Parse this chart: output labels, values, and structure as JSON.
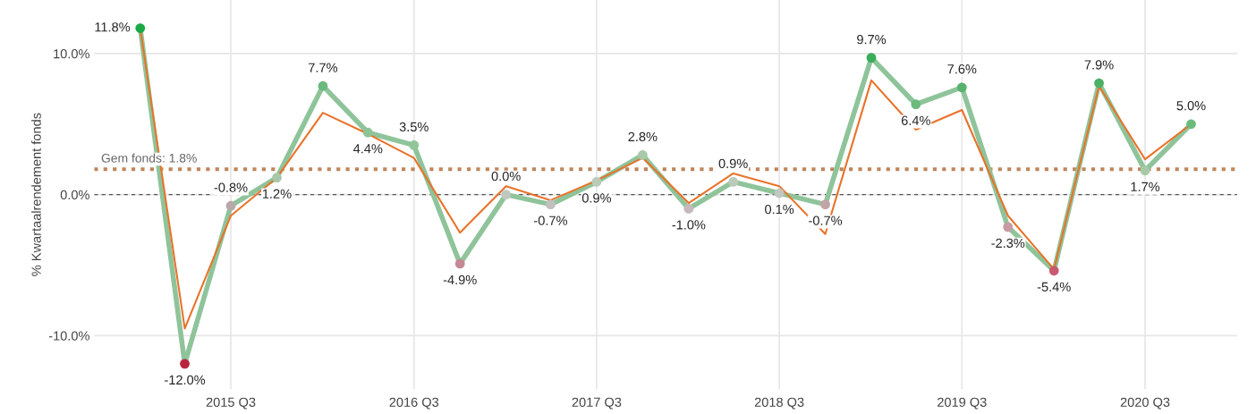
{
  "chart_data": {
    "type": "line",
    "ylabel": "% Kwartaalrendement fonds",
    "x": [
      "2015-02-15",
      "2015-05-15",
      "2015-08-15",
      "2015-11-15",
      "2016-02-15",
      "2016-05-15",
      "2016-08-15",
      "2016-11-15",
      "2017-02-15",
      "2017-05-15",
      "2017-08-15",
      "2017-11-15",
      "2018-02-15",
      "2018-05-15",
      "2018-08-15",
      "2018-11-15",
      "2019-02-15",
      "2019-05-15",
      "2019-08-15",
      "2019-11-15",
      "2020-02-15",
      "2020-05-15",
      "2020-08-15",
      "2020-11-15"
    ],
    "series": [
      {
        "color": "#e8732a",
        "marker": "none",
        "values": [
          11.8,
          -9.5,
          -1.5,
          1.2,
          5.8,
          4.3,
          2.6,
          -2.7,
          0.6,
          -0.4,
          1.0,
          2.6,
          -0.6,
          1.5,
          0.6,
          -2.8,
          8.1,
          4.6,
          6.0,
          -1.5,
          -5.3,
          7.7,
          2.5,
          5.0
        ]
      },
      {
        "color": "#8fc49b",
        "marker": "circle",
        "colors": [
          "#1aaa45",
          "#b8243f",
          "#b8a8aa",
          "#a9c8a9",
          "#6cb97f",
          "#8cc496",
          "#93c59b",
          "#c48a94",
          "#c0c8bf",
          "#c1bfbf",
          "#bccab9",
          "#a9c9a8",
          "#c5b9bb",
          "#bccab9",
          "#c3c7c1",
          "#c0a4a8",
          "#3aad5a",
          "#6cbb7d",
          "#56b26d",
          "#c69ba3",
          "#c85a70",
          "#4ab063",
          "#a7c9a7",
          "#6cbb7d"
        ],
        "values": [
          11.8,
          -12.0,
          -0.8,
          1.2,
          7.7,
          4.4,
          3.5,
          -4.9,
          0.0,
          -0.7,
          0.9,
          2.8,
          -1.0,
          0.9,
          0.1,
          -0.7,
          9.7,
          6.4,
          7.6,
          -2.3,
          -5.4,
          7.9,
          1.7,
          5.0
        ],
        "value_labels": [
          "11.8%",
          "-12.0%",
          "-0.8%",
          "1.2%",
          "7.7%",
          "4.4%",
          "3.5%",
          "-4.9%",
          "0.0%",
          "-0.7%",
          "0.9%",
          "2.8%",
          "-1.0%",
          "0.9%",
          "0.1%",
          "-0.7%",
          "9.7%",
          "6.4%",
          "7.6%",
          "-2.3%",
          "-5.4%",
          "7.9%",
          "1.7%",
          "5.0%"
        ]
      }
    ],
    "ref_lines": [
      {
        "axis": "y",
        "value": 1.8,
        "label": "Gem fonds: 1.8%",
        "color": "#c0855a",
        "line_style": "dotted"
      },
      {
        "axis": "y",
        "value": 0,
        "color": "#555555",
        "line_style": "dashed"
      }
    ],
    "ylim": [
      -13.8,
      13.8
    ],
    "yticks": [
      {
        "value": -10,
        "label": "-10.0%"
      },
      {
        "value": 0,
        "label": "0.0%"
      },
      {
        "value": 10,
        "label": "10.0%"
      }
    ],
    "xlim": [
      "2014-11-15",
      "2021-02-15"
    ],
    "xticks": [
      {
        "value": "2015-08-15",
        "label": "2015 Q3"
      },
      {
        "value": "2016-08-15",
        "label": "2016 Q3"
      },
      {
        "value": "2017-08-15",
        "label": "2017 Q3"
      },
      {
        "value": "2018-08-15",
        "label": "2018 Q3"
      },
      {
        "value": "2019-08-15",
        "label": "2019 Q3"
      },
      {
        "value": "2020-08-15",
        "label": "2020 Q3"
      }
    ],
    "grid": true
  }
}
